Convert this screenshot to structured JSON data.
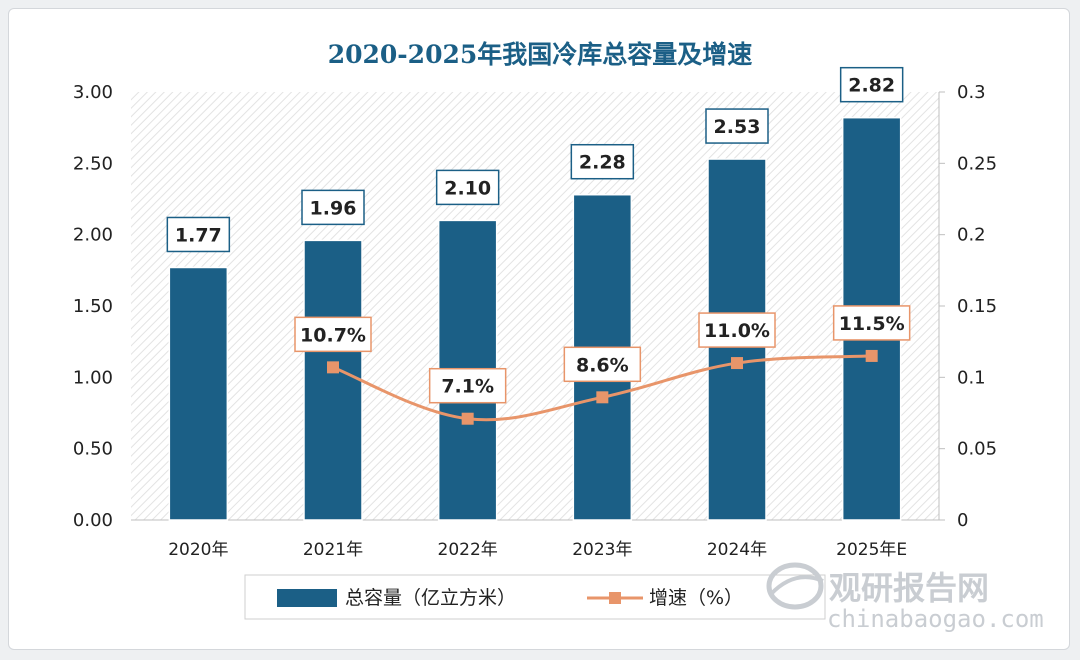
{
  "chart_data": {
    "type": "bar",
    "title": "2020-2025年我国冷库总容量及增速",
    "categories": [
      "2020年",
      "2021年",
      "2022年",
      "2023年",
      "2024年",
      "2025年E"
    ],
    "series": [
      {
        "name": "总容量（亿立方米）",
        "type": "bar",
        "axis": "left",
        "color": "#1b5f86",
        "values": [
          1.77,
          1.96,
          2.1,
          2.28,
          2.53,
          2.82
        ],
        "labels": [
          "1.77",
          "1.96",
          "2.10",
          "2.28",
          "2.53",
          "2.82"
        ]
      },
      {
        "name": "增速（%）",
        "type": "line",
        "axis": "right",
        "color": "#e8956a",
        "values": [
          null,
          0.107,
          0.071,
          0.086,
          0.11,
          0.115
        ],
        "labels": [
          "",
          "10.7%",
          "7.1%",
          "8.6%",
          "11.0%",
          "11.5%"
        ]
      }
    ],
    "y_left": {
      "range": [
        0,
        3.0
      ],
      "ticks": [
        "0.00",
        "0.50",
        "1.00",
        "1.50",
        "2.00",
        "2.50",
        "3.00"
      ]
    },
    "y_right": {
      "range": [
        0,
        0.3
      ],
      "ticks": [
        "0",
        "0.05",
        "0.1",
        "0.15",
        "0.2",
        "0.25",
        "0.3"
      ]
    },
    "legend_position": "bottom",
    "plot_background": "hatched"
  },
  "watermark": {
    "brand": "观研报告网",
    "site": "chinabaogao.com"
  }
}
